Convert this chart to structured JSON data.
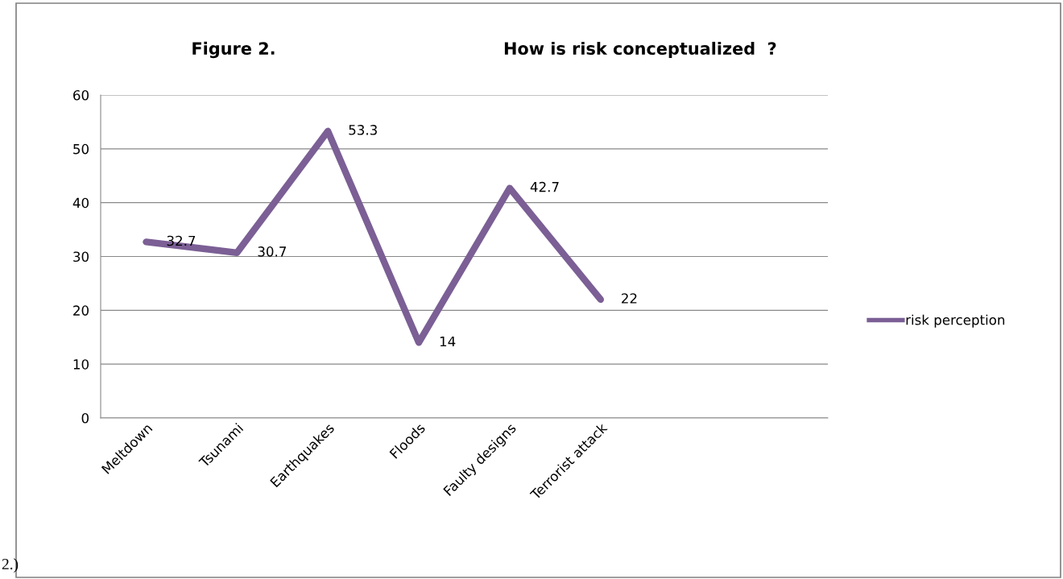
{
  "chart_data": {
    "type": "line",
    "title": "Figure 2.",
    "subtitle": "How is risk conceptualized  ?",
    "categories": [
      "Meltdown",
      "Tsunami",
      "Earthquakes",
      "Floods",
      "Faulty designs",
      "Terrorist attack",
      null,
      null
    ],
    "series": [
      {
        "name": "risk perception",
        "color": "#7b5f95",
        "values": [
          32.7,
          30.7,
          53.3,
          14,
          42.7,
          22,
          null,
          null
        ]
      }
    ],
    "ylim": [
      0,
      60
    ],
    "yticks": [
      0,
      10,
      20,
      30,
      40,
      50,
      60
    ],
    "grid": "y",
    "legend": "right",
    "data_labels": true,
    "marker": "none",
    "line_style": "solid",
    "annotations": [
      "2.)"
    ]
  }
}
